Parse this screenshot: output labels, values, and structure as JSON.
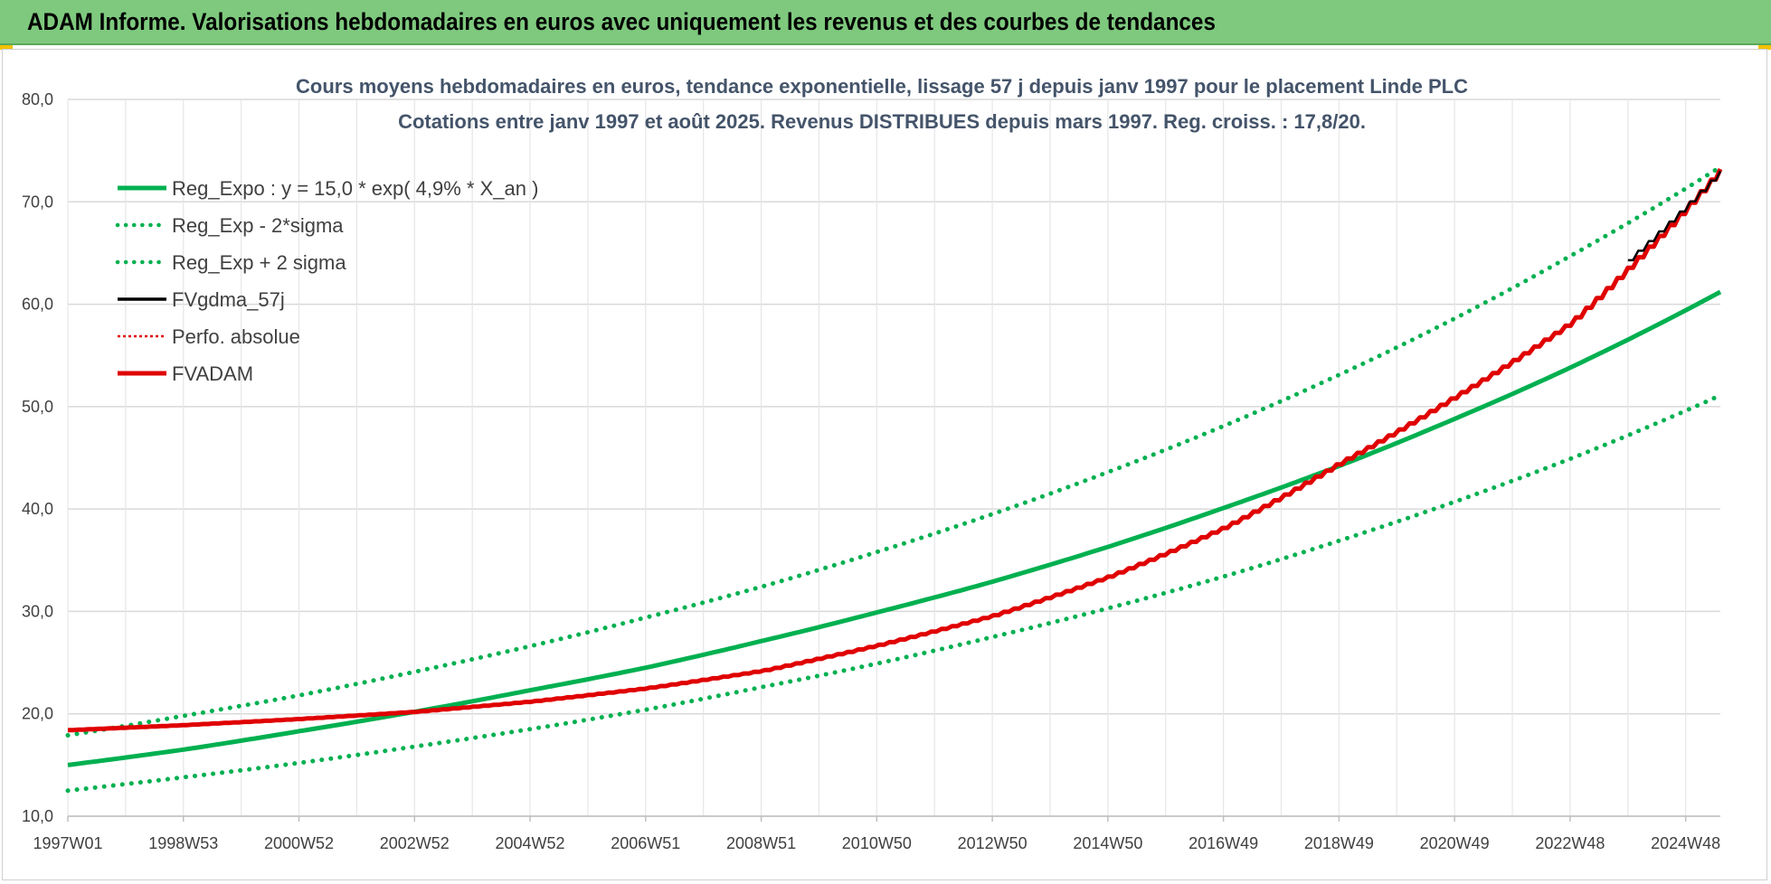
{
  "banner": {
    "title": "ADAM Informe. Valorisations hebdomadaires en euros avec uniquement les revenus et des courbes de tendances"
  },
  "colors": {
    "banner": "#7ec97e",
    "trend": "#00b050",
    "fvadam": "#e00000",
    "fvgdma": "#000000",
    "grid": "#d9d9d9"
  },
  "chart_data": {
    "type": "line",
    "title_lines": [
      "Cours moyens hebdomadaires en euros, tendance exponentielle, lissage 57 j depuis janv 1997 pour le placement Linde PLC",
      "Cotations entre janv 1997 et août 2025.  Revenus DISTRIBUES depuis mars 1997. Reg. croiss. : 17,8/20."
    ],
    "xlabel": "",
    "ylabel": "",
    "ylim": [
      10,
      80
    ],
    "y_ticks": [
      "10,0",
      "20,0",
      "30,0",
      "40,0",
      "50,0",
      "60,0",
      "70,0",
      "80,0"
    ],
    "x_range_years": [
      1997.0,
      2025.6
    ],
    "x_ticks": [
      {
        "label": "1997W01",
        "year": 1997.0
      },
      {
        "label": "1998W53",
        "year": 1999.0
      },
      {
        "label": "2000W52",
        "year": 2001.0
      },
      {
        "label": "2002W52",
        "year": 2003.0
      },
      {
        "label": "2004W52",
        "year": 2005.0
      },
      {
        "label": "2006W51",
        "year": 2007.0
      },
      {
        "label": "2008W51",
        "year": 2009.0
      },
      {
        "label": "2010W50",
        "year": 2011.0
      },
      {
        "label": "2012W50",
        "year": 2013.0
      },
      {
        "label": "2014W50",
        "year": 2015.0
      },
      {
        "label": "2016W49",
        "year": 2017.0
      },
      {
        "label": "2018W49",
        "year": 2019.0
      },
      {
        "label": "2020W49",
        "year": 2021.0
      },
      {
        "label": "2022W48",
        "year": 2023.0
      },
      {
        "label": "2024W48",
        "year": 2025.0
      }
    ],
    "grid": true,
    "legend_position": "top-left",
    "series": [
      {
        "name": "Reg_Expo : y = 15,0 * exp( 4,9% *  X_an )",
        "color": "#00b050",
        "style": "solid",
        "x": [
          1997,
          1999,
          2001,
          2003,
          2005,
          2007,
          2009,
          2011,
          2013,
          2015,
          2017,
          2019,
          2021,
          2023,
          2025.6
        ],
        "y": [
          15.0,
          16.5,
          18.3,
          20.2,
          22.3,
          24.5,
          27.1,
          29.9,
          32.9,
          36.3,
          40.1,
          44.2,
          48.8,
          53.8,
          61.2
        ]
      },
      {
        "name": "Reg_Exp - 2*sigma",
        "color": "#00b050",
        "style": "dotted",
        "x": [
          1997,
          1999,
          2001,
          2003,
          2005,
          2007,
          2009,
          2011,
          2013,
          2015,
          2017,
          2019,
          2021,
          2023,
          2025.6
        ],
        "y": [
          12.5,
          13.8,
          15.2,
          16.8,
          18.5,
          20.4,
          22.6,
          24.9,
          27.5,
          30.3,
          33.4,
          36.9,
          40.7,
          44.9,
          51.1
        ]
      },
      {
        "name": "Reg_Exp + 2 sigma",
        "color": "#00b050",
        "style": "dotted",
        "x": [
          1997,
          1999,
          2001,
          2003,
          2005,
          2007,
          2009,
          2011,
          2013,
          2015,
          2017,
          2019,
          2021,
          2023,
          2025.6
        ],
        "y": [
          17.9,
          19.8,
          21.8,
          24.1,
          26.6,
          29.4,
          32.4,
          35.8,
          39.5,
          43.6,
          48.1,
          53.1,
          58.6,
          64.7,
          73.4
        ]
      },
      {
        "name": "FVgdma_57j",
        "color": "#000000",
        "style": "solid",
        "x": [
          2024.0,
          2025.6
        ],
        "y": [
          64.3,
          73.0
        ]
      },
      {
        "name": "Perfo. absolue",
        "color": "#e00000",
        "style": "dotted",
        "x": [
          1997,
          1999,
          2001,
          2003,
          2005,
          2007,
          2009,
          2011,
          2013,
          2015,
          2017,
          2019,
          2021,
          2023,
          2025.6
        ],
        "y": [
          18.4,
          18.9,
          19.5,
          20.2,
          21.2,
          22.5,
          24.2,
          26.7,
          29.6,
          33.4,
          38.2,
          44.5,
          51.0,
          58.2,
          73.2
        ]
      },
      {
        "name": "FVADAM",
        "color": "#e00000",
        "style": "solid",
        "x": [
          1997,
          1999,
          2001,
          2003,
          2005,
          2007,
          2009,
          2011,
          2013,
          2015,
          2017,
          2019,
          2021,
          2023,
          2025.6
        ],
        "y": [
          18.4,
          18.9,
          19.5,
          20.2,
          21.2,
          22.5,
          24.2,
          26.7,
          29.6,
          33.4,
          38.2,
          44.5,
          51.0,
          58.2,
          73.2
        ]
      }
    ]
  }
}
